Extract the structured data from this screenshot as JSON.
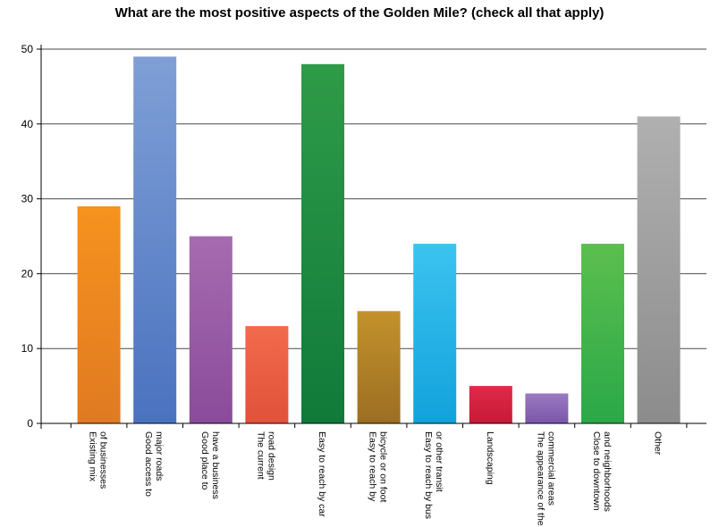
{
  "chart_data": {
    "type": "bar",
    "title": "What are the most positive aspects of the Golden Mile? (check all that apply)",
    "ylim": [
      0,
      50
    ],
    "yticks": [
      0,
      10,
      20,
      30,
      40,
      50
    ],
    "grid": true,
    "categories": [
      [
        "Existing mix",
        "of businesses"
      ],
      [
        "Good access to",
        "major roads"
      ],
      [
        "Good place to",
        "have a business"
      ],
      [
        "The current",
        "road design"
      ],
      [
        "Easy to reach by car"
      ],
      [
        "Easy to reach by",
        "bicycle or on foot"
      ],
      [
        "Easy to reach by bus",
        "or other transit"
      ],
      [
        "Landscaping"
      ],
      [
        "The appearance of the",
        "commercial areas"
      ],
      [
        "Close to downtown",
        "and neighborhoods"
      ],
      [
        "Other"
      ]
    ],
    "values": [
      29,
      49,
      25,
      13,
      48,
      15,
      24,
      5,
      4,
      24,
      41
    ],
    "colors": [
      [
        "#f6921e",
        "#e07a22"
      ],
      [
        "#7f9fd6",
        "#4a72bf"
      ],
      [
        "#a66bb0",
        "#8a4b9a"
      ],
      [
        "#f26a4c",
        "#e0523a"
      ],
      [
        "#2e9b48",
        "#107a3a"
      ],
      [
        "#c3922c",
        "#9c6e22"
      ],
      [
        "#3cc3f0",
        "#12a2dc"
      ],
      [
        "#e02a48",
        "#c41a38"
      ],
      [
        "#9b7ac2",
        "#7a56aa"
      ],
      [
        "#5cbf4e",
        "#2aa848"
      ],
      [
        "#b0b0b0",
        "#8c8c8c"
      ]
    ]
  }
}
